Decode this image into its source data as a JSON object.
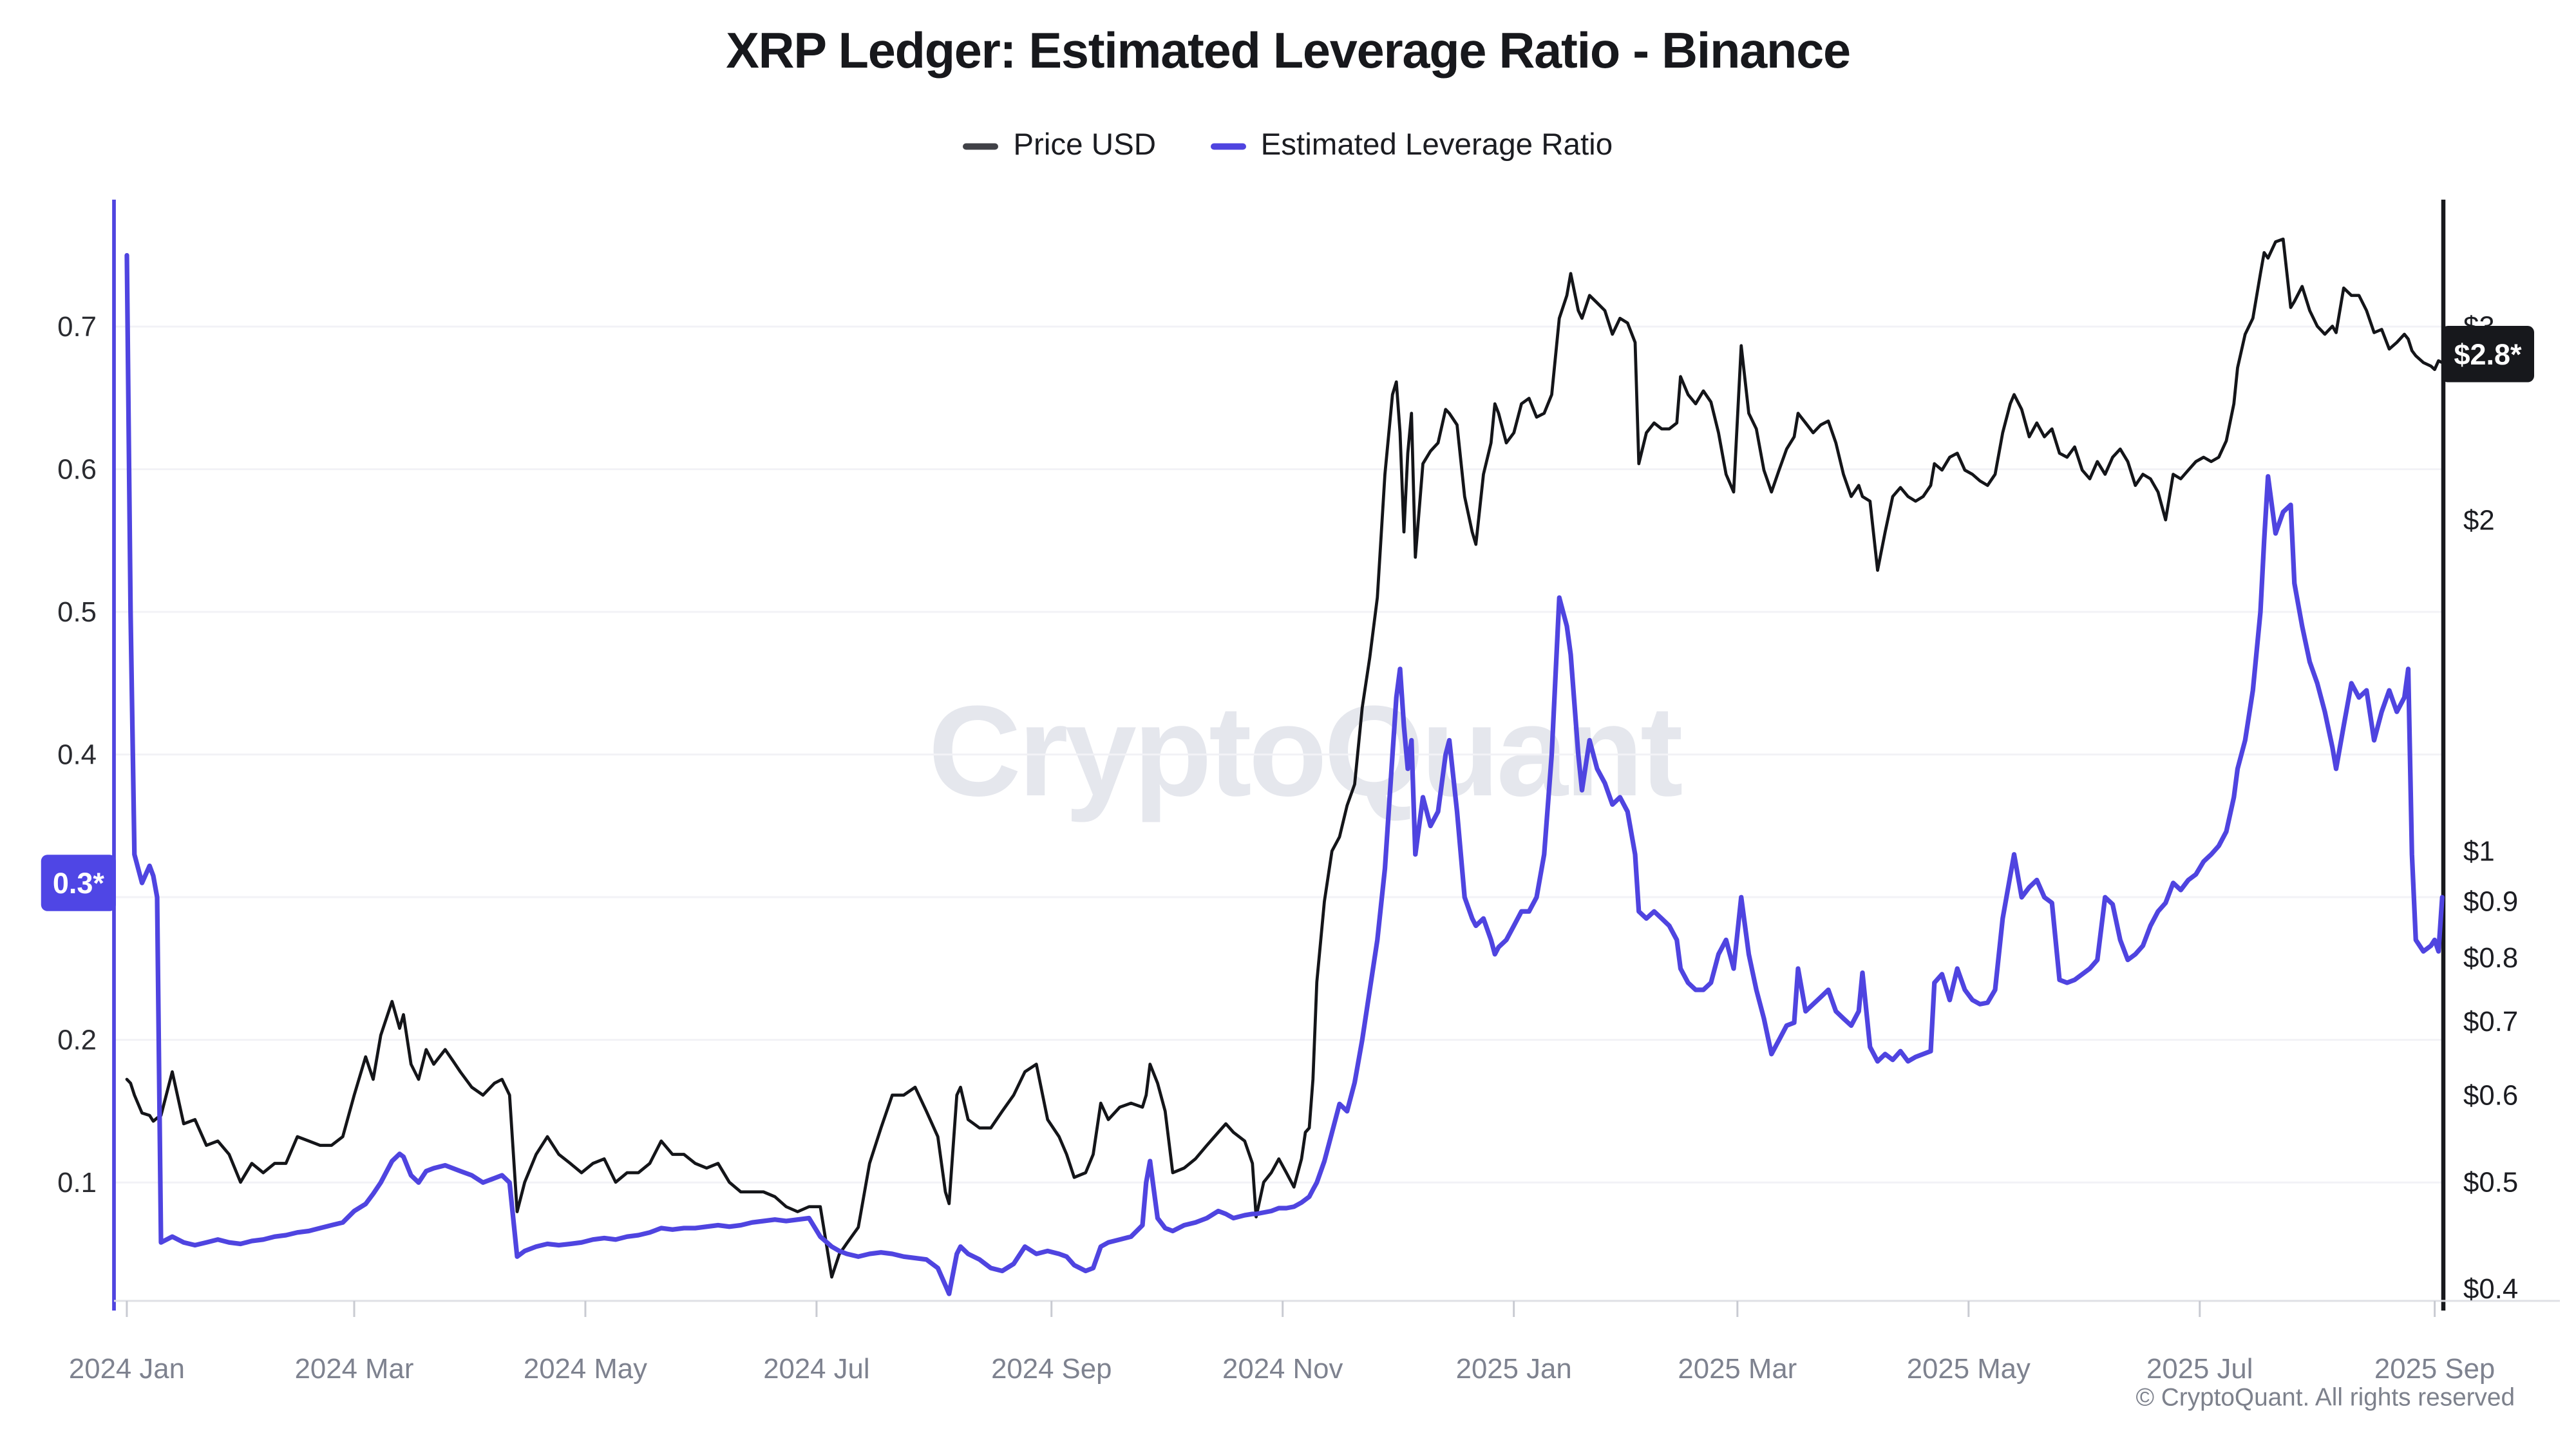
{
  "header": {
    "title": "XRP Ledger: Estimated Leverage Ratio - Binance"
  },
  "legend": [
    {
      "label": "Price USD",
      "color": "#404147"
    },
    {
      "label": "Estimated Leverage Ratio",
      "color": "#4f44e0"
    }
  ],
  "watermark": {
    "text": "CryptoQuant",
    "color": "#e5e7ed"
  },
  "footer": {
    "copyright": "© CryptoQuant. All rights reserved"
  },
  "badges": {
    "left": {
      "label": "0.3*",
      "value": 0.31,
      "bg": "#4f46e5",
      "fg": "#ffffff"
    },
    "right": {
      "label": "$2.8*",
      "value": 2.83,
      "bg": "#17181c",
      "fg": "#ffffff"
    }
  },
  "chart_data": {
    "type": "line",
    "title": "XRP Ledger: Estimated Leverage Ratio - Binance",
    "grid": "horizontal",
    "legend_position": "top",
    "x_axis": {
      "range": [
        "2023-12-27",
        "2025-09-04"
      ],
      "ticks": [
        {
          "date": "2024-01-01",
          "label": "2024 Jan"
        },
        {
          "date": "2024-03-01",
          "label": "2024 Mar"
        },
        {
          "date": "2024-05-01",
          "label": "2024 May"
        },
        {
          "date": "2024-07-01",
          "label": "2024 Jul"
        },
        {
          "date": "2024-09-01",
          "label": "2024 Sep"
        },
        {
          "date": "2024-11-01",
          "label": "2024 Nov"
        },
        {
          "date": "2025-01-01",
          "label": "2025 Jan"
        },
        {
          "date": "2025-03-01",
          "label": "2025 Mar"
        },
        {
          "date": "2025-05-01",
          "label": "2025 May"
        },
        {
          "date": "2025-07-01",
          "label": "2025 Jul"
        },
        {
          "date": "2025-09-01",
          "label": "2025 Sep"
        }
      ]
    },
    "left_axis": {
      "name": "Estimated Leverage Ratio",
      "scale": "linear",
      "range": [
        0.017,
        0.789
      ],
      "ticks": [
        0.1,
        0.2,
        0.3,
        0.4,
        0.5,
        0.6,
        0.7
      ],
      "color": "#4f44e0"
    },
    "right_axis": {
      "name": "Price USD",
      "scale": "log",
      "range": [
        0.39,
        3.91
      ],
      "ticks": [
        {
          "value": 0.4,
          "label": "$0.4"
        },
        {
          "value": 0.5,
          "label": "$0.5"
        },
        {
          "value": 0.6,
          "label": "$0.6"
        },
        {
          "value": 0.7,
          "label": "$0.7"
        },
        {
          "value": 0.8,
          "label": "$0.8"
        },
        {
          "value": 0.9,
          "label": "$0.9"
        },
        {
          "value": 1,
          "label": "$1"
        },
        {
          "value": 2,
          "label": "$2"
        },
        {
          "value": 3,
          "label": "$3"
        }
      ],
      "color": "#17181c"
    },
    "dates": [
      "2024-01-01",
      "2024-01-02",
      "2024-01-03",
      "2024-01-05",
      "2024-01-07",
      "2024-01-08",
      "2024-01-09",
      "2024-01-10",
      "2024-01-13",
      "2024-01-16",
      "2024-01-19",
      "2024-01-22",
      "2024-01-25",
      "2024-01-28",
      "2024-01-31",
      "2024-02-03",
      "2024-02-06",
      "2024-02-09",
      "2024-02-12",
      "2024-02-15",
      "2024-02-18",
      "2024-02-21",
      "2024-02-24",
      "2024-02-27",
      "2024-03-01",
      "2024-03-04",
      "2024-03-06",
      "2024-03-08",
      "2024-03-11",
      "2024-03-13",
      "2024-03-14",
      "2024-03-16",
      "2024-03-18",
      "2024-03-20",
      "2024-03-22",
      "2024-03-25",
      "2024-03-27",
      "2024-03-29",
      "2024-04-01",
      "2024-04-04",
      "2024-04-07",
      "2024-04-09",
      "2024-04-11",
      "2024-04-13",
      "2024-04-15",
      "2024-04-18",
      "2024-04-21",
      "2024-04-24",
      "2024-04-27",
      "2024-04-30",
      "2024-05-03",
      "2024-05-06",
      "2024-05-09",
      "2024-05-12",
      "2024-05-15",
      "2024-05-18",
      "2024-05-21",
      "2024-05-24",
      "2024-05-27",
      "2024-05-30",
      "2024-06-02",
      "2024-06-05",
      "2024-06-08",
      "2024-06-11",
      "2024-06-14",
      "2024-06-17",
      "2024-06-20",
      "2024-06-23",
      "2024-06-26",
      "2024-06-29",
      "2024-07-02",
      "2024-07-05",
      "2024-07-07",
      "2024-07-09",
      "2024-07-12",
      "2024-07-15",
      "2024-07-18",
      "2024-07-21",
      "2024-07-24",
      "2024-07-27",
      "2024-07-30",
      "2024-08-02",
      "2024-08-04",
      "2024-08-05",
      "2024-08-07",
      "2024-08-08",
      "2024-08-10",
      "2024-08-13",
      "2024-08-16",
      "2024-08-19",
      "2024-08-22",
      "2024-08-25",
      "2024-08-28",
      "2024-08-31",
      "2024-09-03",
      "2024-09-05",
      "2024-09-07",
      "2024-09-10",
      "2024-09-12",
      "2024-09-14",
      "2024-09-16",
      "2024-09-19",
      "2024-09-22",
      "2024-09-25",
      "2024-09-26",
      "2024-09-27",
      "2024-09-29",
      "2024-10-01",
      "2024-10-03",
      "2024-10-06",
      "2024-10-09",
      "2024-10-12",
      "2024-10-15",
      "2024-10-17",
      "2024-10-19",
      "2024-10-22",
      "2024-10-24",
      "2024-10-25",
      "2024-10-27",
      "2024-10-29",
      "2024-10-31",
      "2024-11-02",
      "2024-11-04",
      "2024-11-06",
      "2024-11-07",
      "2024-11-08",
      "2024-11-09",
      "2024-11-10",
      "2024-11-12",
      "2024-11-14",
      "2024-11-16",
      "2024-11-18",
      "2024-11-20",
      "2024-11-22",
      "2024-11-24",
      "2024-11-26",
      "2024-11-28",
      "2024-11-30",
      "2024-12-01",
      "2024-12-02",
      "2024-12-03",
      "2024-12-04",
      "2024-12-05",
      "2024-12-06",
      "2024-12-08",
      "2024-12-10",
      "2024-12-12",
      "2024-12-14",
      "2024-12-15",
      "2024-12-17",
      "2024-12-19",
      "2024-12-21",
      "2024-12-22",
      "2024-12-24",
      "2024-12-26",
      "2024-12-27",
      "2024-12-28",
      "2024-12-30",
      "2025-01-01",
      "2025-01-03",
      "2025-01-05",
      "2025-01-07",
      "2025-01-09",
      "2025-01-11",
      "2025-01-13",
      "2025-01-15",
      "2025-01-16",
      "2025-01-18",
      "2025-01-19",
      "2025-01-21",
      "2025-01-23",
      "2025-01-25",
      "2025-01-27",
      "2025-01-29",
      "2025-01-31",
      "2025-02-02",
      "2025-02-03",
      "2025-02-05",
      "2025-02-07",
      "2025-02-09",
      "2025-02-11",
      "2025-02-13",
      "2025-02-14",
      "2025-02-16",
      "2025-02-18",
      "2025-02-20",
      "2025-02-22",
      "2025-02-24",
      "2025-02-26",
      "2025-02-28",
      "2025-03-02",
      "2025-03-04",
      "2025-03-06",
      "2025-03-08",
      "2025-03-10",
      "2025-03-12",
      "2025-03-14",
      "2025-03-16",
      "2025-03-17",
      "2025-03-19",
      "2025-03-21",
      "2025-03-23",
      "2025-03-25",
      "2025-03-27",
      "2025-03-29",
      "2025-03-31",
      "2025-04-02",
      "2025-04-03",
      "2025-04-05",
      "2025-04-07",
      "2025-04-09",
      "2025-04-11",
      "2025-04-13",
      "2025-04-15",
      "2025-04-17",
      "2025-04-19",
      "2025-04-21",
      "2025-04-22",
      "2025-04-24",
      "2025-04-26",
      "2025-04-28",
      "2025-04-30",
      "2025-05-02",
      "2025-05-04",
      "2025-05-06",
      "2025-05-08",
      "2025-05-10",
      "2025-05-12",
      "2025-05-13",
      "2025-05-15",
      "2025-05-17",
      "2025-05-19",
      "2025-05-21",
      "2025-05-23",
      "2025-05-25",
      "2025-05-27",
      "2025-05-29",
      "2025-05-31",
      "2025-06-02",
      "2025-06-04",
      "2025-06-06",
      "2025-06-08",
      "2025-06-10",
      "2025-06-12",
      "2025-06-14",
      "2025-06-16",
      "2025-06-18",
      "2025-06-20",
      "2025-06-22",
      "2025-06-24",
      "2025-06-26",
      "2025-06-28",
      "2025-06-30",
      "2025-07-02",
      "2025-07-04",
      "2025-07-06",
      "2025-07-08",
      "2025-07-10",
      "2025-07-11",
      "2025-07-13",
      "2025-07-15",
      "2025-07-17",
      "2025-07-18",
      "2025-07-19",
      "2025-07-21",
      "2025-07-23",
      "2025-07-25",
      "2025-07-26",
      "2025-07-28",
      "2025-07-30",
      "2025-08-01",
      "2025-08-03",
      "2025-08-05",
      "2025-08-06",
      "2025-08-08",
      "2025-08-10",
      "2025-08-12",
      "2025-08-14",
      "2025-08-16",
      "2025-08-18",
      "2025-08-20",
      "2025-08-22",
      "2025-08-24",
      "2025-08-25",
      "2025-08-26",
      "2025-08-27",
      "2025-08-29",
      "2025-08-31",
      "2025-09-01",
      "2025-09-02",
      "2025-09-03"
    ],
    "series": [
      {
        "name": "Price USD",
        "axis": "right",
        "color": "#141519",
        "width": 1.9,
        "values": [
          0.62,
          0.615,
          0.6,
          0.578,
          0.575,
          0.568,
          0.572,
          0.575,
          0.63,
          0.565,
          0.57,
          0.54,
          0.545,
          0.53,
          0.5,
          0.52,
          0.51,
          0.52,
          0.52,
          0.55,
          0.545,
          0.54,
          0.54,
          0.55,
          0.6,
          0.65,
          0.62,
          0.68,
          0.73,
          0.69,
          0.71,
          0.64,
          0.62,
          0.66,
          0.64,
          0.66,
          0.645,
          0.63,
          0.61,
          0.6,
          0.615,
          0.62,
          0.6,
          0.47,
          0.5,
          0.53,
          0.55,
          0.53,
          0.52,
          0.51,
          0.52,
          0.525,
          0.5,
          0.51,
          0.51,
          0.52,
          0.545,
          0.53,
          0.53,
          0.52,
          0.515,
          0.52,
          0.5,
          0.49,
          0.49,
          0.49,
          0.485,
          0.475,
          0.47,
          0.475,
          0.475,
          0.41,
          0.43,
          0.44,
          0.455,
          0.52,
          0.56,
          0.6,
          0.6,
          0.61,
          0.58,
          0.55,
          0.49,
          0.478,
          0.6,
          0.61,
          0.57,
          0.56,
          0.56,
          0.58,
          0.6,
          0.63,
          0.64,
          0.57,
          0.55,
          0.53,
          0.505,
          0.51,
          0.53,
          0.59,
          0.57,
          0.585,
          0.59,
          0.585,
          0.6,
          0.64,
          0.615,
          0.58,
          0.51,
          0.515,
          0.525,
          0.54,
          0.555,
          0.565,
          0.555,
          0.545,
          0.52,
          0.465,
          0.5,
          0.51,
          0.525,
          0.51,
          0.495,
          0.525,
          0.555,
          0.56,
          0.62,
          0.76,
          0.9,
          1.0,
          1.03,
          1.1,
          1.15,
          1.35,
          1.5,
          1.7,
          2.2,
          2.6,
          2.67,
          2.4,
          1.95,
          2.3,
          2.5,
          1.85,
          2.25,
          2.31,
          2.35,
          2.52,
          2.5,
          2.44,
          2.1,
          1.95,
          1.9,
          2.2,
          2.35,
          2.55,
          2.5,
          2.35,
          2.4,
          2.55,
          2.58,
          2.48,
          2.5,
          2.6,
          3.05,
          3.2,
          3.35,
          3.1,
          3.05,
          3.2,
          3.15,
          3.1,
          2.95,
          3.05,
          3.02,
          2.9,
          2.25,
          2.4,
          2.45,
          2.42,
          2.42,
          2.45,
          2.7,
          2.6,
          2.55,
          2.62,
          2.56,
          2.4,
          2.2,
          2.12,
          2.88,
          2.5,
          2.42,
          2.22,
          2.12,
          2.22,
          2.32,
          2.38,
          2.5,
          2.45,
          2.4,
          2.44,
          2.46,
          2.35,
          2.2,
          2.1,
          2.15,
          2.1,
          2.08,
          1.8,
          1.95,
          2.1,
          2.14,
          2.1,
          2.08,
          2.1,
          2.15,
          2.25,
          2.22,
          2.28,
          2.3,
          2.22,
          2.2,
          2.17,
          2.15,
          2.2,
          2.4,
          2.55,
          2.6,
          2.52,
          2.38,
          2.45,
          2.38,
          2.42,
          2.3,
          2.28,
          2.33,
          2.22,
          2.18,
          2.26,
          2.2,
          2.28,
          2.32,
          2.26,
          2.15,
          2.2,
          2.18,
          2.12,
          2.0,
          2.2,
          2.18,
          2.22,
          2.26,
          2.28,
          2.26,
          2.28,
          2.36,
          2.55,
          2.75,
          2.95,
          3.05,
          3.35,
          3.5,
          3.46,
          3.58,
          3.6,
          3.12,
          3.16,
          3.26,
          3.1,
          3.0,
          2.95,
          3.0,
          2.96,
          3.25,
          3.2,
          3.2,
          3.1,
          2.96,
          2.98,
          2.86,
          2.9,
          2.95,
          2.92,
          2.85,
          2.82,
          2.78,
          2.76,
          2.74,
          2.79,
          2.78
        ]
      },
      {
        "name": "Estimated Leverage Ratio",
        "axis": "left",
        "color": "#4f44e0",
        "width": 2.9,
        "values": [
          0.75,
          0.5,
          0.33,
          0.31,
          0.322,
          0.315,
          0.3,
          0.058,
          0.062,
          0.058,
          0.056,
          0.058,
          0.06,
          0.058,
          0.057,
          0.059,
          0.06,
          0.062,
          0.063,
          0.065,
          0.066,
          0.068,
          0.07,
          0.072,
          0.08,
          0.085,
          0.092,
          0.1,
          0.115,
          0.12,
          0.118,
          0.105,
          0.1,
          0.108,
          0.11,
          0.112,
          0.11,
          0.108,
          0.105,
          0.1,
          0.103,
          0.105,
          0.1,
          0.048,
          0.052,
          0.055,
          0.057,
          0.056,
          0.057,
          0.058,
          0.06,
          0.061,
          0.06,
          0.062,
          0.063,
          0.065,
          0.068,
          0.067,
          0.068,
          0.068,
          0.069,
          0.07,
          0.069,
          0.07,
          0.072,
          0.073,
          0.074,
          0.073,
          0.074,
          0.075,
          0.062,
          0.055,
          0.052,
          0.05,
          0.048,
          0.05,
          0.051,
          0.05,
          0.048,
          0.047,
          0.046,
          0.04,
          0.028,
          0.022,
          0.05,
          0.055,
          0.05,
          0.046,
          0.04,
          0.038,
          0.043,
          0.055,
          0.05,
          0.052,
          0.05,
          0.048,
          0.042,
          0.038,
          0.04,
          0.055,
          0.058,
          0.06,
          0.062,
          0.07,
          0.1,
          0.115,
          0.075,
          0.068,
          0.066,
          0.07,
          0.072,
          0.075,
          0.08,
          0.078,
          0.075,
          0.077,
          0.078,
          0.078,
          0.079,
          0.08,
          0.082,
          0.082,
          0.083,
          0.086,
          0.088,
          0.09,
          0.095,
          0.1,
          0.115,
          0.135,
          0.155,
          0.15,
          0.17,
          0.2,
          0.235,
          0.27,
          0.32,
          0.4,
          0.44,
          0.46,
          0.42,
          0.39,
          0.41,
          0.33,
          0.37,
          0.35,
          0.36,
          0.4,
          0.41,
          0.36,
          0.3,
          0.285,
          0.28,
          0.285,
          0.27,
          0.26,
          0.265,
          0.27,
          0.28,
          0.29,
          0.29,
          0.3,
          0.33,
          0.4,
          0.51,
          0.49,
          0.47,
          0.4,
          0.375,
          0.41,
          0.39,
          0.38,
          0.365,
          0.37,
          0.36,
          0.33,
          0.29,
          0.285,
          0.29,
          0.285,
          0.28,
          0.27,
          0.25,
          0.24,
          0.235,
          0.235,
          0.24,
          0.26,
          0.27,
          0.25,
          0.3,
          0.26,
          0.235,
          0.215,
          0.19,
          0.2,
          0.21,
          0.212,
          0.25,
          0.22,
          0.225,
          0.23,
          0.235,
          0.22,
          0.215,
          0.21,
          0.22,
          0.247,
          0.195,
          0.185,
          0.19,
          0.186,
          0.192,
          0.185,
          0.188,
          0.19,
          0.192,
          0.24,
          0.246,
          0.228,
          0.25,
          0.235,
          0.228,
          0.225,
          0.226,
          0.235,
          0.285,
          0.315,
          0.33,
          0.3,
          0.307,
          0.312,
          0.3,
          0.296,
          0.242,
          0.24,
          0.242,
          0.246,
          0.25,
          0.256,
          0.3,
          0.295,
          0.27,
          0.256,
          0.26,
          0.266,
          0.28,
          0.29,
          0.296,
          0.31,
          0.305,
          0.312,
          0.316,
          0.325,
          0.33,
          0.336,
          0.346,
          0.37,
          0.39,
          0.41,
          0.445,
          0.5,
          0.55,
          0.595,
          0.555,
          0.57,
          0.575,
          0.52,
          0.49,
          0.465,
          0.45,
          0.43,
          0.405,
          0.39,
          0.42,
          0.45,
          0.44,
          0.445,
          0.41,
          0.43,
          0.445,
          0.43,
          0.44,
          0.46,
          0.33,
          0.27,
          0.262,
          0.266,
          0.27,
          0.262,
          0.3
        ]
      }
    ]
  }
}
